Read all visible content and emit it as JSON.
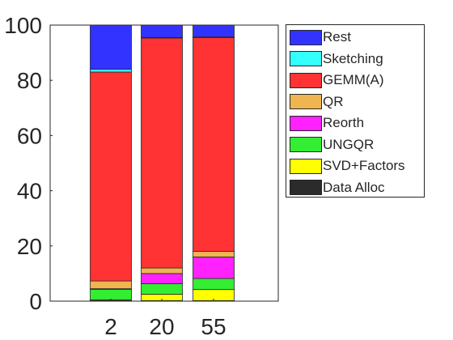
{
  "chart_data": {
    "type": "bar",
    "stacked": true,
    "categories": [
      "2",
      "20",
      "55"
    ],
    "ylim": [
      0,
      100
    ],
    "yticks": [
      "0",
      "20",
      "40",
      "60",
      "80",
      "100"
    ],
    "legend_position": "right",
    "series": [
      {
        "name": "Data Alloc",
        "color": "#2b2b2b",
        "values": [
          0.2,
          0.2,
          0.2
        ]
      },
      {
        "name": "SVD+Factors",
        "color": "#ffff00",
        "values": [
          0.3,
          2.3,
          4.0
        ]
      },
      {
        "name": "UNGQR",
        "color": "#33ee33",
        "values": [
          3.8,
          3.8,
          4.0
        ]
      },
      {
        "name": "Reorth",
        "color": "#ff22ff",
        "values": [
          0.2,
          3.7,
          7.8
        ]
      },
      {
        "name": "QR",
        "color": "#f0b450",
        "values": [
          2.8,
          2.0,
          2.0
        ]
      },
      {
        "name": "GEMM(A)",
        "color": "#ff3333",
        "values": [
          75.7,
          83.3,
          77.5
        ]
      },
      {
        "name": "Sketching",
        "color": "#33ffff",
        "values": [
          1.0,
          0.2,
          0.2
        ]
      },
      {
        "name": "Rest",
        "color": "#3333ff",
        "values": [
          16.0,
          4.5,
          4.3
        ]
      }
    ]
  }
}
